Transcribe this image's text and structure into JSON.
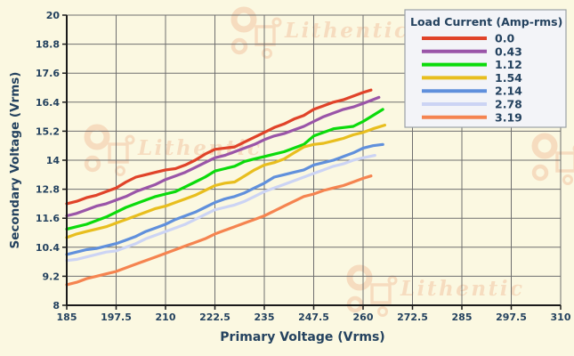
{
  "chart_data": {
    "type": "line",
    "title": "",
    "xlabel": "Primary Voltage (Vrms)",
    "ylabel": "Secondary Voltage (Vrms)",
    "xlim": [
      185,
      310
    ],
    "ylim": [
      8,
      20
    ],
    "x_ticks": [
      "185",
      "197.5",
      "210",
      "222.5",
      "235",
      "247.5",
      "260",
      "272.5",
      "285",
      "297.5",
      "310"
    ],
    "y_ticks": [
      "8",
      "9.2",
      "10.4",
      "11.6",
      "12.8",
      "14",
      "15.2",
      "16.4",
      "17.6",
      "18.8",
      "20"
    ],
    "grid": true,
    "legend_title": "Load Current (Amp-rms)",
    "legend_position": "top-right",
    "series": [
      {
        "name": "0.0",
        "color": "#e04329",
        "points": [
          [
            185,
            12.2
          ],
          [
            187.5,
            12.3
          ],
          [
            190,
            12.45
          ],
          [
            192.5,
            12.55
          ],
          [
            195,
            12.7
          ],
          [
            197.5,
            12.85
          ],
          [
            200,
            13.1
          ],
          [
            202.5,
            13.3
          ],
          [
            205,
            13.4
          ],
          [
            207.5,
            13.5
          ],
          [
            210,
            13.6
          ],
          [
            212.5,
            13.65
          ],
          [
            215,
            13.8
          ],
          [
            217.5,
            14.0
          ],
          [
            220,
            14.25
          ],
          [
            222.5,
            14.45
          ],
          [
            225,
            14.5
          ],
          [
            227.5,
            14.55
          ],
          [
            230,
            14.75
          ],
          [
            232.5,
            14.95
          ],
          [
            235,
            15.15
          ],
          [
            237.5,
            15.35
          ],
          [
            240,
            15.5
          ],
          [
            242.5,
            15.7
          ],
          [
            245,
            15.85
          ],
          [
            247.5,
            16.1
          ],
          [
            250,
            16.25
          ],
          [
            252.5,
            16.4
          ],
          [
            255,
            16.5
          ],
          [
            257.5,
            16.65
          ],
          [
            260,
            16.8
          ],
          [
            262,
            16.9
          ]
        ]
      },
      {
        "name": "0.43",
        "color": "#9a55a8",
        "points": [
          [
            185,
            11.7
          ],
          [
            187.5,
            11.8
          ],
          [
            190,
            11.95
          ],
          [
            192.5,
            12.1
          ],
          [
            195,
            12.2
          ],
          [
            197.5,
            12.35
          ],
          [
            200,
            12.5
          ],
          [
            202.5,
            12.7
          ],
          [
            205,
            12.85
          ],
          [
            207.5,
            13.0
          ],
          [
            210,
            13.2
          ],
          [
            212.5,
            13.35
          ],
          [
            215,
            13.5
          ],
          [
            217.5,
            13.7
          ],
          [
            220,
            13.9
          ],
          [
            222.5,
            14.1
          ],
          [
            225,
            14.2
          ],
          [
            227.5,
            14.35
          ],
          [
            230,
            14.5
          ],
          [
            232.5,
            14.65
          ],
          [
            235,
            14.85
          ],
          [
            237.5,
            15.0
          ],
          [
            240,
            15.1
          ],
          [
            242.5,
            15.25
          ],
          [
            245,
            15.4
          ],
          [
            247.5,
            15.6
          ],
          [
            250,
            15.8
          ],
          [
            252.5,
            15.95
          ],
          [
            255,
            16.1
          ],
          [
            257.5,
            16.2
          ],
          [
            260,
            16.35
          ],
          [
            264,
            16.6
          ]
        ]
      },
      {
        "name": "1.12",
        "color": "#0bdb0b",
        "points": [
          [
            185,
            11.15
          ],
          [
            187.5,
            11.25
          ],
          [
            190,
            11.35
          ],
          [
            192.5,
            11.5
          ],
          [
            195,
            11.65
          ],
          [
            197.5,
            11.85
          ],
          [
            200,
            12.05
          ],
          [
            202.5,
            12.2
          ],
          [
            205,
            12.35
          ],
          [
            207.5,
            12.5
          ],
          [
            210,
            12.6
          ],
          [
            212.5,
            12.7
          ],
          [
            215,
            12.9
          ],
          [
            217.5,
            13.1
          ],
          [
            220,
            13.3
          ],
          [
            222.5,
            13.55
          ],
          [
            225,
            13.65
          ],
          [
            227.5,
            13.75
          ],
          [
            230,
            13.95
          ],
          [
            232.5,
            14.05
          ],
          [
            235,
            14.15
          ],
          [
            237.5,
            14.25
          ],
          [
            240,
            14.35
          ],
          [
            242.5,
            14.5
          ],
          [
            245,
            14.65
          ],
          [
            247.5,
            15.0
          ],
          [
            250,
            15.15
          ],
          [
            252.5,
            15.3
          ],
          [
            255,
            15.35
          ],
          [
            257.5,
            15.4
          ],
          [
            260,
            15.6
          ],
          [
            262.5,
            15.85
          ],
          [
            265,
            16.1
          ]
        ]
      },
      {
        "name": "1.54",
        "color": "#e8be1e",
        "points": [
          [
            185,
            10.8
          ],
          [
            187.5,
            10.95
          ],
          [
            190,
            11.05
          ],
          [
            192.5,
            11.15
          ],
          [
            195,
            11.25
          ],
          [
            197.5,
            11.4
          ],
          [
            200,
            11.55
          ],
          [
            202.5,
            11.7
          ],
          [
            205,
            11.85
          ],
          [
            207.5,
            12.0
          ],
          [
            210,
            12.1
          ],
          [
            212.5,
            12.25
          ],
          [
            215,
            12.4
          ],
          [
            217.5,
            12.55
          ],
          [
            220,
            12.75
          ],
          [
            222.5,
            12.95
          ],
          [
            225,
            13.05
          ],
          [
            227.5,
            13.1
          ],
          [
            230,
            13.35
          ],
          [
            232.5,
            13.6
          ],
          [
            235,
            13.8
          ],
          [
            237.5,
            13.9
          ],
          [
            240,
            14.05
          ],
          [
            242.5,
            14.3
          ],
          [
            245,
            14.55
          ],
          [
            247.5,
            14.65
          ],
          [
            250,
            14.7
          ],
          [
            252.5,
            14.8
          ],
          [
            255,
            14.9
          ],
          [
            257.5,
            15.05
          ],
          [
            260,
            15.15
          ],
          [
            262.5,
            15.3
          ],
          [
            265.5,
            15.45
          ]
        ]
      },
      {
        "name": "2.14",
        "color": "#6090dc",
        "points": [
          [
            185,
            10.1
          ],
          [
            187.5,
            10.2
          ],
          [
            190,
            10.3
          ],
          [
            192.5,
            10.35
          ],
          [
            195,
            10.45
          ],
          [
            197.5,
            10.55
          ],
          [
            200,
            10.7
          ],
          [
            202.5,
            10.85
          ],
          [
            205,
            11.05
          ],
          [
            207.5,
            11.2
          ],
          [
            210,
            11.35
          ],
          [
            212.5,
            11.55
          ],
          [
            215,
            11.7
          ],
          [
            217.5,
            11.85
          ],
          [
            220,
            12.05
          ],
          [
            222.5,
            12.25
          ],
          [
            225,
            12.4
          ],
          [
            227.5,
            12.5
          ],
          [
            230,
            12.65
          ],
          [
            232.5,
            12.85
          ],
          [
            235,
            13.05
          ],
          [
            237.5,
            13.3
          ],
          [
            240,
            13.4
          ],
          [
            242.5,
            13.5
          ],
          [
            245,
            13.6
          ],
          [
            247.5,
            13.8
          ],
          [
            250,
            13.9
          ],
          [
            252.5,
            14.0
          ],
          [
            255,
            14.15
          ],
          [
            257.5,
            14.3
          ],
          [
            260,
            14.5
          ],
          [
            262.5,
            14.6
          ],
          [
            265,
            14.65
          ]
        ]
      },
      {
        "name": "2.78",
        "color": "#ccd4f4",
        "points": [
          [
            185,
            9.85
          ],
          [
            187.5,
            9.9
          ],
          [
            190,
            10.0
          ],
          [
            192.5,
            10.1
          ],
          [
            195,
            10.2
          ],
          [
            197.5,
            10.25
          ],
          [
            200,
            10.4
          ],
          [
            202.5,
            10.55
          ],
          [
            205,
            10.75
          ],
          [
            207.5,
            10.9
          ],
          [
            210,
            11.05
          ],
          [
            212.5,
            11.2
          ],
          [
            215,
            11.35
          ],
          [
            217.5,
            11.55
          ],
          [
            220,
            11.75
          ],
          [
            222.5,
            11.95
          ],
          [
            225,
            12.05
          ],
          [
            227.5,
            12.15
          ],
          [
            230,
            12.3
          ],
          [
            232.5,
            12.5
          ],
          [
            235,
            12.7
          ],
          [
            237.5,
            12.85
          ],
          [
            240,
            13.0
          ],
          [
            242.5,
            13.15
          ],
          [
            245,
            13.3
          ],
          [
            247.5,
            13.45
          ],
          [
            250,
            13.6
          ],
          [
            252.5,
            13.75
          ],
          [
            255,
            13.85
          ],
          [
            257.5,
            14.0
          ],
          [
            260,
            14.1
          ],
          [
            263,
            14.2
          ]
        ]
      },
      {
        "name": "3.19",
        "color": "#f58450",
        "points": [
          [
            185,
            8.85
          ],
          [
            187.5,
            8.95
          ],
          [
            190,
            9.1
          ],
          [
            192.5,
            9.2
          ],
          [
            195,
            9.3
          ],
          [
            197.5,
            9.4
          ],
          [
            200,
            9.55
          ],
          [
            202.5,
            9.7
          ],
          [
            205,
            9.85
          ],
          [
            207.5,
            10.0
          ],
          [
            210,
            10.15
          ],
          [
            212.5,
            10.3
          ],
          [
            215,
            10.45
          ],
          [
            217.5,
            10.6
          ],
          [
            220,
            10.75
          ],
          [
            222.5,
            10.95
          ],
          [
            225,
            11.1
          ],
          [
            227.5,
            11.25
          ],
          [
            230,
            11.4
          ],
          [
            232.5,
            11.55
          ],
          [
            235,
            11.7
          ],
          [
            237.5,
            11.9
          ],
          [
            240,
            12.1
          ],
          [
            242.5,
            12.3
          ],
          [
            245,
            12.5
          ],
          [
            247.5,
            12.6
          ],
          [
            250,
            12.75
          ],
          [
            252.5,
            12.85
          ],
          [
            255,
            12.95
          ],
          [
            257.5,
            13.1
          ],
          [
            260,
            13.25
          ],
          [
            262,
            13.35
          ]
        ]
      }
    ],
    "colors": {
      "background": "#fbf8e1",
      "gridline": "#6f6f6f",
      "axis": "#1a1a1a",
      "text": "#24425f",
      "legend_background": "#f3f4f8",
      "legend_border": "#9aa0a6",
      "watermark": "#f2c6a4"
    }
  },
  "watermark": {
    "text": "Lithentic"
  }
}
